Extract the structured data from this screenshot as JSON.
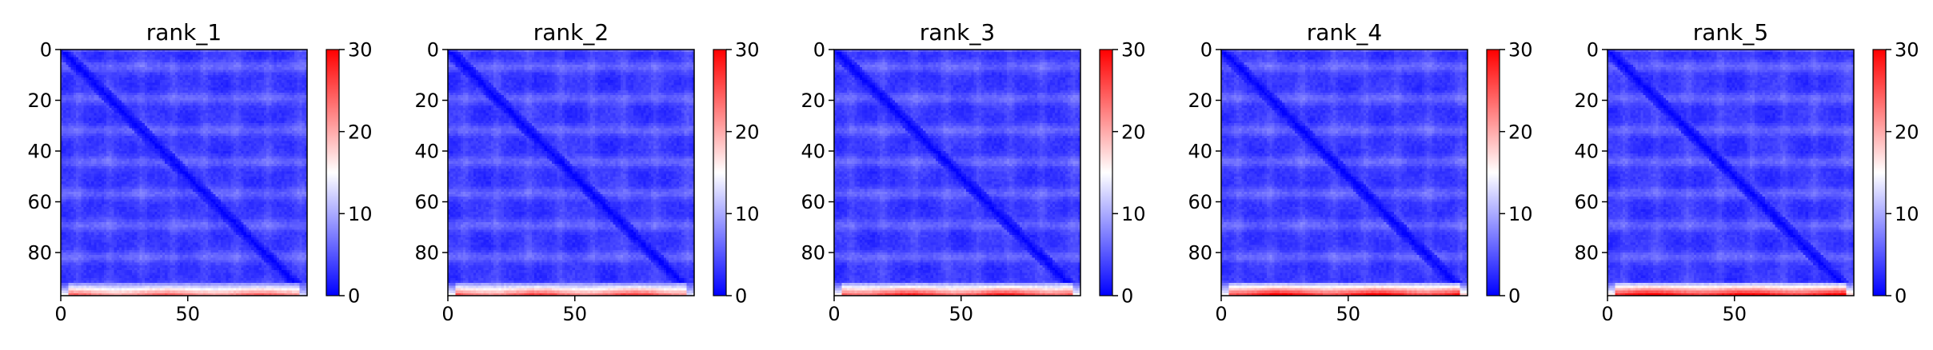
{
  "chart_data": [
    {
      "type": "heatmap",
      "title": "rank_1",
      "xlabel": "",
      "ylabel": "",
      "x_ticks": [
        0,
        50
      ],
      "y_ticks": [
        0,
        20,
        40,
        60,
        80
      ],
      "x_range": [
        0,
        97
      ],
      "y_range": [
        0,
        97
      ],
      "y_axis_inverted": true,
      "colorscale": "bwr",
      "colorbar": {
        "min": 0,
        "max": 30,
        "ticks": [
          0,
          10,
          20,
          30
        ]
      },
      "grid": false,
      "matrix_summary": {
        "size": 97,
        "diagonal_value": 0,
        "background_value": 3,
        "banded_rows_value": 6,
        "bottom_rows_value": 20,
        "bottom_peak_value": 24
      }
    },
    {
      "type": "heatmap",
      "title": "rank_2",
      "xlabel": "",
      "ylabel": "",
      "x_ticks": [
        0,
        50
      ],
      "y_ticks": [
        0,
        20,
        40,
        60,
        80
      ],
      "x_range": [
        0,
        97
      ],
      "y_range": [
        0,
        97
      ],
      "y_axis_inverted": true,
      "colorscale": "bwr",
      "colorbar": {
        "min": 0,
        "max": 30,
        "ticks": [
          0,
          10,
          20,
          30
        ]
      },
      "grid": false,
      "matrix_summary": {
        "size": 97,
        "diagonal_value": 0,
        "background_value": 3,
        "banded_rows_value": 6,
        "bottom_rows_value": 21,
        "bottom_peak_value": 26
      }
    },
    {
      "type": "heatmap",
      "title": "rank_3",
      "xlabel": "",
      "ylabel": "",
      "x_ticks": [
        0,
        50
      ],
      "y_ticks": [
        0,
        20,
        40,
        60,
        80
      ],
      "x_range": [
        0,
        97
      ],
      "y_range": [
        0,
        97
      ],
      "y_axis_inverted": true,
      "colorscale": "bwr",
      "colorbar": {
        "min": 0,
        "max": 30,
        "ticks": [
          0,
          10,
          20,
          30
        ]
      },
      "grid": false,
      "matrix_summary": {
        "size": 97,
        "diagonal_value": 0,
        "background_value": 3,
        "banded_rows_value": 6,
        "bottom_rows_value": 23,
        "bottom_peak_value": 28
      }
    },
    {
      "type": "heatmap",
      "title": "rank_4",
      "xlabel": "",
      "ylabel": "",
      "x_ticks": [
        0,
        50
      ],
      "y_ticks": [
        0,
        20,
        40,
        60,
        80
      ],
      "x_range": [
        0,
        97
      ],
      "y_range": [
        0,
        97
      ],
      "y_axis_inverted": true,
      "colorscale": "bwr",
      "colorbar": {
        "min": 0,
        "max": 30,
        "ticks": [
          0,
          10,
          20,
          30
        ]
      },
      "grid": false,
      "matrix_summary": {
        "size": 97,
        "diagonal_value": 0,
        "background_value": 3,
        "banded_rows_value": 6,
        "bottom_rows_value": 25,
        "bottom_peak_value": 30
      }
    },
    {
      "type": "heatmap",
      "title": "rank_5",
      "xlabel": "",
      "ylabel": "",
      "x_ticks": [
        0,
        50
      ],
      "y_ticks": [
        0,
        20,
        40,
        60,
        80
      ],
      "x_range": [
        0,
        97
      ],
      "y_range": [
        0,
        97
      ],
      "y_axis_inverted": true,
      "colorscale": "bwr",
      "colorbar": {
        "min": 0,
        "max": 30,
        "ticks": [
          0,
          10,
          20,
          30
        ]
      },
      "grid": false,
      "matrix_summary": {
        "size": 97,
        "diagonal_value": 0,
        "background_value": 3,
        "banded_rows_value": 6,
        "bottom_rows_value": 26,
        "bottom_peak_value": 30
      }
    }
  ]
}
